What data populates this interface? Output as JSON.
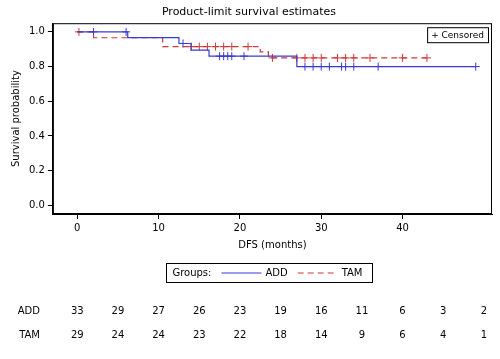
{
  "chart_data": {
    "type": "line",
    "title": "Product-limit survival estimates",
    "x_label": "DFS (months)",
    "y_label": "Survival probability",
    "xlim": [
      -3,
      51
    ],
    "xticks": [
      0,
      10,
      20,
      30,
      40
    ],
    "ylim": [
      -0.05,
      1.05
    ],
    "yticks": [
      {
        "value": 0,
        "label": "0.0"
      },
      {
        "value": 0.2,
        "label": "0.2"
      },
      {
        "value": 0.4,
        "label": "0.4"
      },
      {
        "value": 0.6,
        "label": "0.6"
      },
      {
        "value": 0.8,
        "label": "0.8"
      },
      {
        "value": 1,
        "label": "1.0"
      }
    ],
    "grid": false,
    "legend": "bottom",
    "legend_title": "Groups:",
    "censored_label": "+ Censored",
    "series": [
      {
        "name": "ADD",
        "color": "#3a3ad0",
        "line_style": "solid",
        "marker": "cross",
        "x": [
          0,
          6.2,
          12.5,
          14,
          16.2,
          27,
          49
        ],
        "values": [
          1,
          0.967,
          0.933,
          0.895,
          0.86,
          0.8,
          0.8
        ],
        "censored_x": [
          2,
          6,
          13,
          17.5,
          18,
          18.5,
          19,
          20.5,
          28,
          29,
          30,
          31,
          32.5,
          33,
          34,
          37,
          49
        ],
        "censored_values": [
          1,
          1,
          0.933,
          0.86,
          0.86,
          0.86,
          0.86,
          0.86,
          0.8,
          0.8,
          0.8,
          0.8,
          0.8,
          0.8,
          0.8,
          0.8,
          0.8
        ]
      },
      {
        "name": "TAM",
        "color": "#d03a3a",
        "line_style": "dashed",
        "marker": "cross",
        "x": [
          0,
          2,
          10.5,
          22.5,
          23.5,
          43
        ],
        "values": [
          1,
          0.966,
          0.915,
          0.885,
          0.85,
          0.85
        ],
        "censored_x": [
          0.2,
          14,
          15,
          16,
          17,
          18,
          19,
          21,
          24,
          27,
          28,
          29,
          30,
          32,
          33,
          34,
          36,
          40,
          43
        ],
        "censored_values": [
          1,
          0.915,
          0.915,
          0.915,
          0.915,
          0.915,
          0.915,
          0.915,
          0.85,
          0.85,
          0.85,
          0.85,
          0.85,
          0.85,
          0.85,
          0.85,
          0.85,
          0.85,
          0.85
        ]
      }
    ],
    "at_risk": {
      "x": [
        0,
        5,
        10,
        15,
        20,
        25,
        30,
        35,
        40,
        45,
        50
      ],
      "rows": [
        {
          "name": "ADD",
          "values": [
            33,
            29,
            27,
            26,
            23,
            19,
            16,
            11,
            6,
            3,
            2
          ]
        },
        {
          "name": "TAM",
          "values": [
            29,
            24,
            24,
            23,
            22,
            18,
            14,
            9,
            6,
            4,
            1
          ]
        }
      ]
    }
  }
}
